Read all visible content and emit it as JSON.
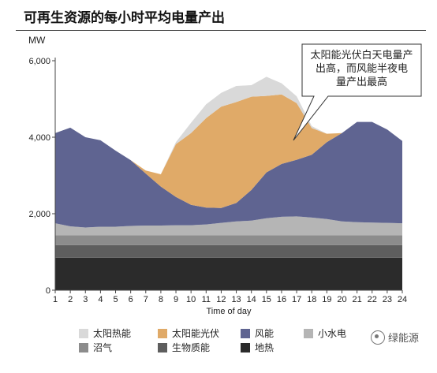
{
  "page": {
    "title": "可再生资源的每小时平均电量产出",
    "y_unit": "MW"
  },
  "watermark": {
    "text": "绿能源",
    "icon": "wechat-logo-icon"
  },
  "chart_data": {
    "type": "area",
    "stacked": true,
    "title": "可再生资源的每小时平均电量产出",
    "xlabel": "Time of day",
    "ylabel": "MW",
    "x": [
      1,
      2,
      3,
      4,
      5,
      6,
      7,
      8,
      9,
      10,
      11,
      12,
      13,
      14,
      15,
      16,
      17,
      18,
      19,
      20,
      21,
      22,
      23,
      24
    ],
    "ylim": [
      0,
      6000
    ],
    "yticks": [
      0,
      2000,
      4000,
      6000
    ],
    "ytick_labels": [
      "0",
      "2,000",
      "4,000",
      "6,000"
    ],
    "grid": false,
    "annotation": "太阳能光伏白天电量产出高，而风能半夜电量产出最高",
    "series": [
      {
        "name": "地热",
        "color": "#2b2b2b",
        "values": [
          850,
          850,
          850,
          850,
          850,
          850,
          850,
          850,
          850,
          850,
          850,
          850,
          850,
          850,
          850,
          850,
          850,
          850,
          850,
          850,
          850,
          850,
          850,
          850
        ]
      },
      {
        "name": "生物质能",
        "color": "#5e5e5e",
        "values": [
          330,
          330,
          330,
          330,
          330,
          330,
          330,
          330,
          330,
          330,
          330,
          330,
          330,
          330,
          330,
          330,
          330,
          330,
          330,
          330,
          330,
          330,
          330,
          330
        ]
      },
      {
        "name": "沼气",
        "color": "#8c8c8c",
        "values": [
          260,
          260,
          260,
          260,
          260,
          260,
          260,
          260,
          260,
          260,
          260,
          260,
          260,
          260,
          260,
          260,
          260,
          260,
          260,
          260,
          260,
          260,
          260,
          260
        ]
      },
      {
        "name": "小水电",
        "color": "#b5b5b5",
        "values": [
          310,
          230,
          200,
          220,
          220,
          240,
          250,
          250,
          260,
          260,
          280,
          320,
          360,
          380,
          440,
          480,
          490,
          460,
          420,
          360,
          340,
          330,
          320,
          310
        ]
      },
      {
        "name": "风能",
        "color": "#5f6491",
        "values": [
          2360,
          2580,
          2360,
          2260,
          1990,
          1720,
          1360,
          1020,
          740,
          530,
          440,
          390,
          480,
          800,
          1200,
          1380,
          1480,
          1640,
          2010,
          2310,
          2620,
          2630,
          2440,
          2150
        ]
      },
      {
        "name": "太阳能光伏",
        "color": "#e0aa68",
        "values": [
          0,
          0,
          0,
          0,
          0,
          0,
          80,
          320,
          1380,
          1880,
          2340,
          2650,
          2640,
          2440,
          2000,
          1820,
          1480,
          700,
          220,
          0,
          0,
          0,
          0,
          0
        ]
      },
      {
        "name": "太阳热能",
        "color": "#d9d9d9",
        "values": [
          0,
          0,
          0,
          0,
          0,
          0,
          0,
          0,
          50,
          270,
          360,
          360,
          420,
          300,
          500,
          290,
          180,
          50,
          0,
          0,
          0,
          0,
          0,
          0
        ]
      }
    ],
    "legend": {
      "placement": "bottom",
      "entries": [
        "太阳热能",
        "太阳能光伏",
        "风能",
        "小水电",
        "沼气",
        "生物质能",
        "地热"
      ]
    }
  }
}
